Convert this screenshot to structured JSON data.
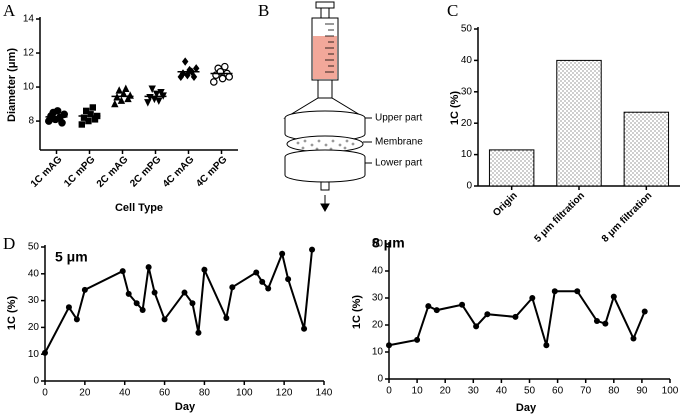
{
  "panel_labels": [
    "A",
    "B",
    "C",
    "D"
  ],
  "diagram": {
    "labels": [
      "Upper part",
      "Membrane",
      "Lower part"
    ]
  },
  "chart_data": [
    {
      "type": "strip",
      "xlabel": "Cell Type",
      "ylabel": "Diameter (μm)",
      "categories": [
        "1C mAG",
        "1C mPG",
        "2C mAG",
        "2C mPG",
        "4C mAG",
        "4C mPG"
      ],
      "values": [
        [
          8.0,
          8.3,
          8.5,
          8.1,
          8.6,
          8.2,
          7.9,
          8.4
        ],
        [
          7.8,
          8.2,
          8.6,
          8.0,
          8.4,
          8.8,
          8.1,
          8.3
        ],
        [
          9.0,
          9.4,
          9.8,
          9.2,
          9.6,
          9.9,
          9.3,
          9.5
        ],
        [
          9.1,
          9.4,
          9.9,
          9.3,
          9.6,
          9.2,
          9.7,
          9.5
        ],
        [
          10.6,
          10.8,
          11.5,
          10.7,
          11.0,
          10.9,
          10.6,
          11.1
        ],
        [
          10.3,
          10.7,
          11.1,
          10.9,
          10.5,
          11.2,
          10.8,
          10.6
        ]
      ],
      "means": [
        8.25,
        8.3,
        9.45,
        9.45,
        10.9,
        10.8
      ],
      "color": "#000000",
      "ylim": [
        6.3,
        14
      ],
      "yticks": [
        8,
        10,
        12,
        14
      ]
    },
    {
      "type": "bar",
      "ylabel": "1C (%)",
      "categories": [
        "Origin",
        "5 μm filtration",
        "8 μm filtration"
      ],
      "values": [
        11.5,
        40,
        23.5
      ],
      "color": "#000000",
      "ylim": [
        0,
        50
      ],
      "yticks": [
        0,
        10,
        20,
        30,
        40,
        50
      ]
    },
    {
      "type": "line",
      "title": "5 μm",
      "xlabel": "Day",
      "ylabel": "1C (%)",
      "color": "#000000",
      "x": [
        0,
        12,
        16,
        20,
        39,
        42,
        46,
        49,
        52,
        55,
        60,
        70,
        74,
        77,
        80,
        91,
        94,
        106,
        109,
        112,
        119,
        122,
        130,
        134
      ],
      "values": [
        10.5,
        27.5,
        23,
        34,
        41,
        32.5,
        29,
        26.5,
        42.5,
        33,
        23,
        33,
        29,
        18,
        41.5,
        23.5,
        35,
        40.5,
        37,
        34.5,
        47.5,
        38,
        19.5,
        49
      ],
      "xlim": [
        0,
        140
      ],
      "xticks": [
        0,
        20,
        40,
        60,
        80,
        100,
        120,
        140
      ],
      "ylim": [
        0,
        50
      ],
      "yticks": [
        0,
        10,
        20,
        30,
        40,
        50
      ]
    },
    {
      "type": "line",
      "title": "8 μm",
      "xlabel": "Day",
      "ylabel": "1C (%)",
      "color": "#000000",
      "x": [
        0,
        10,
        14,
        17,
        26,
        31,
        35,
        45,
        51,
        56,
        59,
        67,
        74,
        77,
        80,
        87,
        91
      ],
      "values": [
        12.5,
        14.5,
        27,
        25.5,
        27.5,
        19.5,
        24,
        23,
        30,
        12.5,
        32.5,
        32.5,
        21.5,
        20.5,
        30.5,
        15,
        25
      ],
      "xlim": [
        0,
        100
      ],
      "xticks": [
        0,
        10,
        20,
        30,
        40,
        50,
        60,
        70,
        80,
        90,
        100
      ],
      "ylim": [
        0,
        50
      ],
      "yticks": [
        0,
        10,
        20,
        30,
        40,
        50
      ]
    }
  ]
}
